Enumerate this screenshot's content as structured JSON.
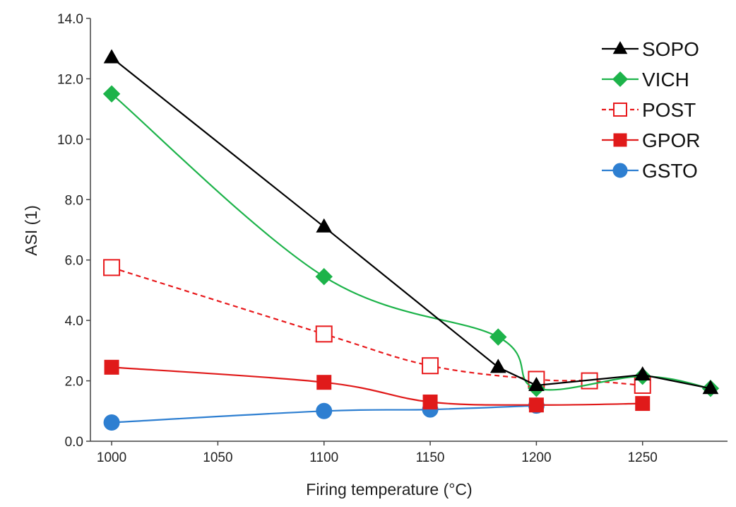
{
  "chart_data": {
    "type": "line",
    "title": "",
    "xlabel": "Firing temperature (°C)",
    "ylabel": "ASI (1)",
    "xlim": [
      990,
      1290
    ],
    "ylim": [
      0,
      14
    ],
    "xticks": [
      "1000",
      "1050",
      "1100",
      "1150",
      "1200",
      "1250"
    ],
    "yticks": [
      "0.0",
      "2.0",
      "4.0",
      "6.0",
      "8.0",
      "10.0",
      "12.0",
      "14.0"
    ],
    "grid": false,
    "legend_position": "top-right",
    "series": [
      {
        "name": "SOPO",
        "color": "#000000",
        "marker": "triangle",
        "filled": true,
        "dashed": false,
        "curve": "straight",
        "x": [
          1000,
          1100,
          1182,
          1200,
          1250,
          1282
        ],
        "y": [
          12.7,
          7.1,
          2.45,
          1.85,
          2.2,
          1.75
        ]
      },
      {
        "name": "VICH",
        "color": "#1db34a",
        "marker": "diamond",
        "filled": true,
        "dashed": false,
        "curve": "smooth",
        "x": [
          1000,
          1100,
          1182,
          1200,
          1250,
          1282
        ],
        "y": [
          11.5,
          5.45,
          3.45,
          1.75,
          2.15,
          1.75
        ]
      },
      {
        "name": "POST",
        "color": "#e8191c",
        "marker": "square",
        "filled": false,
        "dashed": true,
        "curve": "smooth",
        "x": [
          1000,
          1100,
          1150,
          1200,
          1225,
          1250
        ],
        "y": [
          5.75,
          3.55,
          2.5,
          2.05,
          2.0,
          1.85
        ]
      },
      {
        "name": "GPOR",
        "color": "#e01a1a",
        "marker": "square",
        "filled": true,
        "dashed": false,
        "curve": "smooth",
        "x": [
          1000,
          1100,
          1150,
          1200,
          1250
        ],
        "y": [
          2.45,
          1.95,
          1.3,
          1.2,
          1.25
        ]
      },
      {
        "name": "GSTO",
        "color": "#2e7fd1",
        "marker": "circle",
        "filled": true,
        "dashed": false,
        "curve": "smooth",
        "x": [
          1000,
          1100,
          1150,
          1200
        ],
        "y": [
          0.62,
          1.0,
          1.05,
          1.18
        ]
      }
    ]
  }
}
